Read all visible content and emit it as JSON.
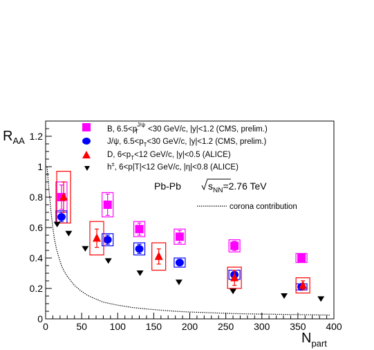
{
  "chart_data": {
    "type": "scatter",
    "xlabel": "N",
    "xlabel_sub": "part",
    "ylabel": "R",
    "ylabel_sub": "AA",
    "xlim": [
      0,
      400
    ],
    "ylim": [
      0,
      1.3
    ],
    "x_ticks": [
      0,
      50,
      100,
      150,
      200,
      250,
      300,
      350,
      400
    ],
    "y_ticks": [
      0,
      0.2,
      0.4,
      0.6,
      0.8,
      1,
      1.2
    ],
    "x_tick_labels": [
      "0",
      "50",
      "100",
      "150",
      "200",
      "250",
      "300",
      "350",
      "400"
    ],
    "y_tick_labels": [
      "0",
      "0.2",
      "0.4",
      "0.6",
      "0.8",
      "1",
      "1.2"
    ],
    "annotation": {
      "system": "Pb-Pb",
      "energy_prefix": "s",
      "energy_sub": "NN",
      "energy_suffix": "=2.76 TeV"
    },
    "series": [
      {
        "name": "B, 6.5<pT J/ψ<30 GeV/c, |y|<1.2 (CMS, prelim.)",
        "legend_parts": [
          "B, 6.5<p",
          "J/ψ",
          "T",
          "<30 GeV/c, |y|<1.2 (CMS, prelim.)"
        ],
        "marker": "square",
        "color": "#ff00ff",
        "points": [
          {
            "x": 22,
            "y": 0.8,
            "err": 0.08,
            "sys": 0.1
          },
          {
            "x": 86,
            "y": 0.75,
            "err": 0.07,
            "sys": 0.08
          },
          {
            "x": 130,
            "y": 0.59,
            "err": 0.04,
            "sys": 0.05
          },
          {
            "x": 186,
            "y": 0.54,
            "err": 0.04,
            "sys": 0.05
          },
          {
            "x": 262,
            "y": 0.48,
            "err": 0.03,
            "sys": 0.04
          },
          {
            "x": 355,
            "y": 0.4,
            "err": 0.02,
            "sys": 0.03
          }
        ]
      },
      {
        "name": "J/ψ, 6.5<pT<30 GeV/c, |y|<1.2 (CMS, prelim.)",
        "legend_parts": [
          "J/ψ, 6.5<p",
          "",
          "T",
          "<30 GeV/c, |y|<1.2 (CMS, prelim.)"
        ],
        "marker": "circle",
        "color": "#0000ff",
        "points": [
          {
            "x": 22,
            "y": 0.67,
            "err": 0.03,
            "sys": 0.04
          },
          {
            "x": 86,
            "y": 0.52,
            "err": 0.03,
            "sys": 0.04
          },
          {
            "x": 130,
            "y": 0.46,
            "err": 0.03,
            "sys": 0.04
          },
          {
            "x": 186,
            "y": 0.37,
            "err": 0.02,
            "sys": 0.03
          },
          {
            "x": 262,
            "y": 0.29,
            "err": 0.02,
            "sys": 0.03
          },
          {
            "x": 355,
            "y": 0.21,
            "err": 0.01,
            "sys": 0.02
          }
        ]
      },
      {
        "name": "D, 6<pT<12 GeV/c, |y|<0.5 (ALICE)",
        "legend_parts": [
          "D, 6<p",
          "",
          "T",
          "<12 GeV/c, |y|<0.5 (ALICE)"
        ],
        "marker": "triangle-up",
        "color": "#ff0000",
        "points": [
          {
            "x": 25,
            "y": 0.8,
            "err": 0.1,
            "sys": 0.17
          },
          {
            "x": 71,
            "y": 0.53,
            "err": 0.06,
            "sys": 0.11
          },
          {
            "x": 157,
            "y": 0.41,
            "err": 0.05,
            "sys": 0.09
          },
          {
            "x": 262,
            "y": 0.27,
            "err": 0.05,
            "sys": 0.07
          },
          {
            "x": 357,
            "y": 0.22,
            "err": 0.03,
            "sys": 0.05
          }
        ]
      },
      {
        "name": "h±, 6<pT<12 GeV/c, |η|<0.8 (ALICE)",
        "legend_parts": [
          "h",
          "±",
          "",
          ", 6<p|T|<12 GeV/c, |η|<0.8 (ALICE)"
        ],
        "marker": "triangle-down",
        "color": "#000000",
        "points": [
          {
            "x": 16,
            "y": 0.62
          },
          {
            "x": 32,
            "y": 0.56
          },
          {
            "x": 55,
            "y": 0.46
          },
          {
            "x": 87,
            "y": 0.38
          },
          {
            "x": 131,
            "y": 0.3
          },
          {
            "x": 185,
            "y": 0.24
          },
          {
            "x": 260,
            "y": 0.18
          },
          {
            "x": 331,
            "y": 0.15
          },
          {
            "x": 382,
            "y": 0.13
          }
        ]
      }
    ],
    "corona": {
      "name": "corona contribution",
      "color": "#000000",
      "x": [
        2,
        4,
        6,
        8,
        10,
        12,
        15,
        18,
        22,
        26,
        30,
        35,
        40,
        50,
        60,
        70,
        80,
        90,
        100,
        120,
        140,
        160,
        180,
        200,
        230,
        260,
        290,
        320,
        350,
        380,
        395
      ],
      "y": [
        1.0,
        0.88,
        0.78,
        0.68,
        0.6,
        0.53,
        0.46,
        0.41,
        0.35,
        0.31,
        0.28,
        0.25,
        0.22,
        0.18,
        0.15,
        0.13,
        0.11,
        0.1,
        0.09,
        0.075,
        0.065,
        0.057,
        0.05,
        0.045,
        0.04,
        0.035,
        0.032,
        0.03,
        0.028,
        0.026,
        0.025
      ]
    }
  }
}
